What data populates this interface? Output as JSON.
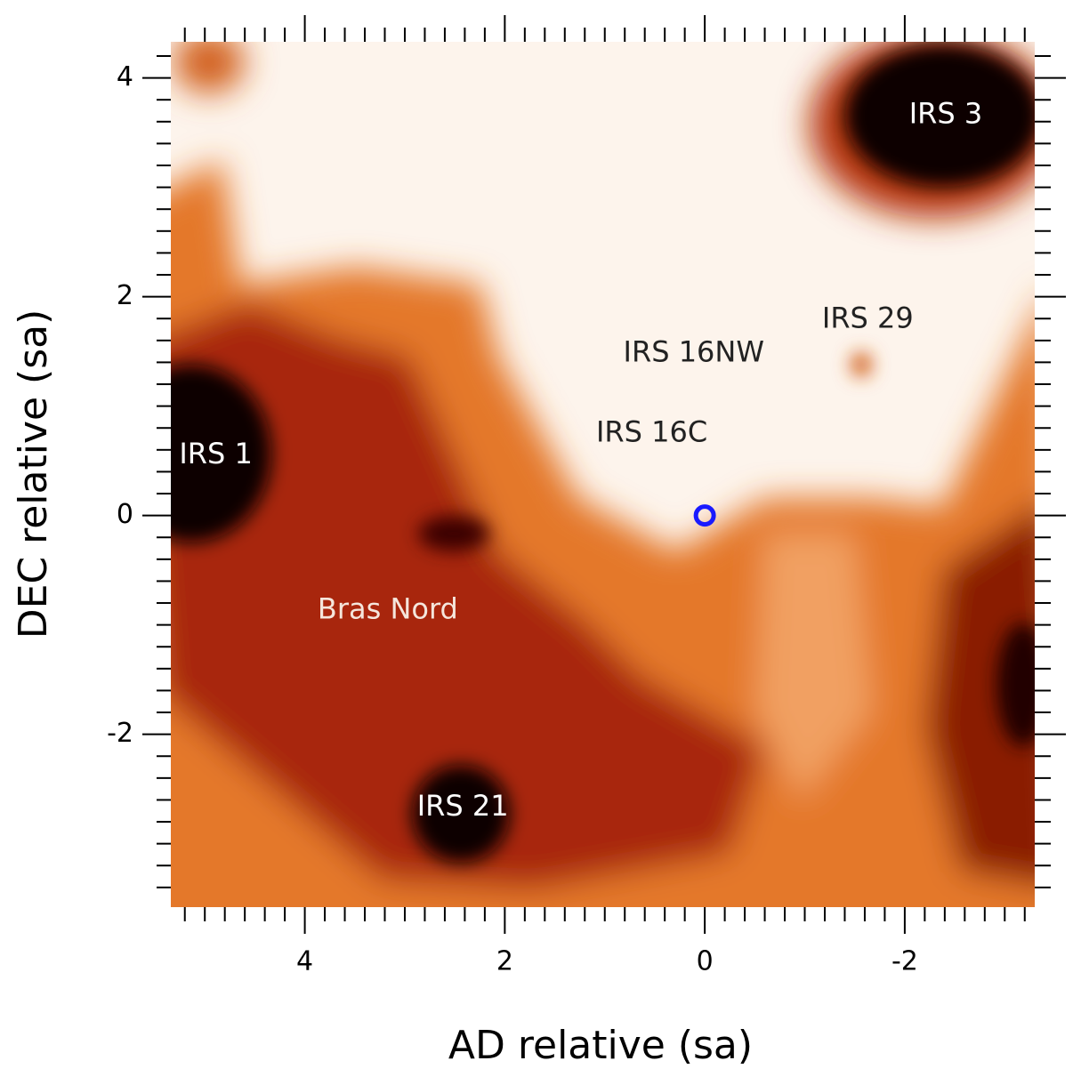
{
  "chart_data": {
    "type": "image",
    "xlabel": "AD relative (sa)",
    "ylabel": "DEC relative (sa)",
    "xlim": [
      5.34,
      -3.3
    ],
    "ylim": [
      -3.58,
      4.33
    ],
    "xticks": [
      4,
      2,
      0,
      -2
    ],
    "yticks": [
      -2,
      0,
      2,
      4
    ],
    "xminorticks": [
      5.2,
      5.0,
      4.8,
      4.6,
      4.4,
      4.2,
      3.8,
      3.6,
      3.4,
      3.2,
      3.0,
      2.8,
      2.6,
      2.4,
      2.2,
      1.8,
      1.6,
      1.4,
      1.2,
      1.0,
      0.8,
      0.6,
      0.4,
      0.2,
      -0.2,
      -0.4,
      -0.6,
      -0.8,
      -1.0,
      -1.2,
      -1.4,
      -1.6,
      -1.8,
      -2.2,
      -2.4,
      -2.6,
      -2.8,
      -3.0,
      -3.2
    ],
    "yminorticks": [
      4.2,
      3.8,
      3.6,
      3.4,
      3.2,
      3.0,
      2.8,
      2.6,
      2.4,
      2.2,
      1.8,
      1.6,
      1.4,
      1.2,
      1.0,
      0.8,
      0.6,
      0.4,
      0.2,
      -0.2,
      -0.4,
      -0.6,
      -0.8,
      -1.0,
      -1.2,
      -1.4,
      -1.6,
      -1.8,
      -2.2,
      -2.4,
      -2.6,
      -2.8,
      -3.0,
      -3.2,
      -3.4
    ],
    "annotations": [
      {
        "text": "IRS 3",
        "x": -2.41,
        "y": 3.66,
        "color": "#ffffff"
      },
      {
        "text": "IRS 29",
        "x": -1.63,
        "y": 1.79,
        "color": "#222222"
      },
      {
        "text": "IRS 16NW",
        "x": 0.11,
        "y": 1.48,
        "color": "#222222"
      },
      {
        "text": "IRS 16C",
        "x": 0.53,
        "y": 0.75,
        "color": "#222222"
      },
      {
        "text": "IRS 1",
        "x": 4.89,
        "y": 0.55,
        "color": "#ffffff"
      },
      {
        "text": "Bras Nord",
        "x": 3.17,
        "y": -0.87,
        "color": "#f5e6dc"
      },
      {
        "text": "IRS 21",
        "x": 2.42,
        "y": -2.67,
        "color": "#ffffff"
      }
    ],
    "marker": {
      "x": 0,
      "y": 0,
      "color": "#1a1aff"
    }
  }
}
